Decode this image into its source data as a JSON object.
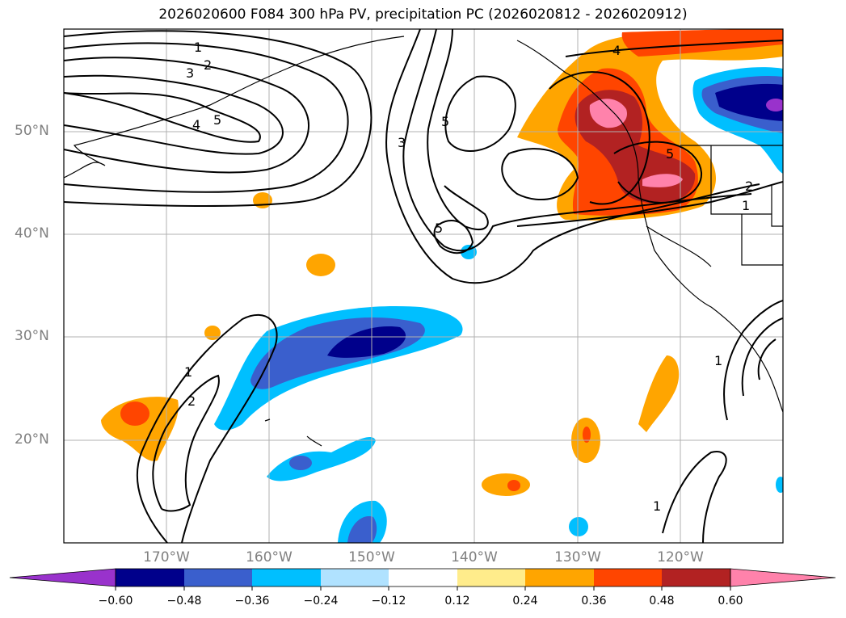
{
  "title": "2026020600 F084 300 hPa PV, precipitation PC (2026020812 - 2026020912)",
  "map": {
    "lat_labels": [
      "50°N",
      "40°N",
      "30°N",
      "20°N"
    ],
    "lon_labels": [
      "170°W",
      "160°W",
      "150°W",
      "140°W",
      "130°W",
      "120°W"
    ],
    "pv_contour_labels": [
      "1",
      "2",
      "3",
      "4",
      "5"
    ]
  },
  "colorbar": {
    "tick_labels": [
      "−0.60",
      "−0.48",
      "−0.36",
      "−0.24",
      "−0.12",
      "0.12",
      "0.24",
      "0.36",
      "0.48",
      "0.60"
    ],
    "colors": [
      "#9932cc",
      "#00008b",
      "#3a5fcd",
      "#00bfff",
      "#b0e2ff",
      "#ffffff",
      "#ffec8b",
      "#ffa500",
      "#ff4500",
      "#b22222",
      "#ff82ab"
    ]
  }
}
